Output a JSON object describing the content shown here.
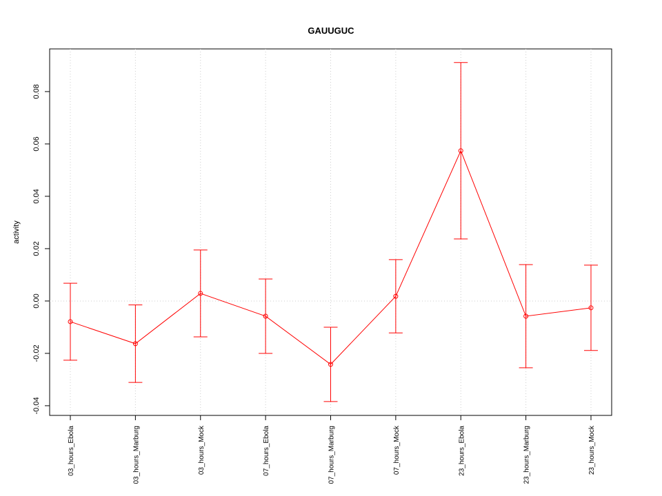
{
  "chart_data": {
    "type": "line",
    "title": "GAUUGUC",
    "y_label": "activity",
    "categories": [
      "03_hours_Ebola",
      "03_hours_Marburg",
      "03_hours_Mock",
      "07_hours_Ebola",
      "07_hours_Marburg",
      "07_hours_Mock",
      "23_hours_Ebola",
      "23_hours_Marburg",
      "23_hours_Mock"
    ],
    "values": [
      -0.0079,
      -0.0163,
      0.0029,
      -0.0058,
      -0.0242,
      0.0018,
      0.0574,
      -0.0058,
      -0.0026
    ],
    "errors": [
      0.0147,
      0.0148,
      0.0166,
      0.0142,
      0.0142,
      0.014,
      0.0337,
      0.0197,
      0.0163
    ],
    "color": "#ff0000",
    "ylim": [
      -0.0437,
      0.0963
    ],
    "yticks": [
      -0.04,
      -0.02,
      {
        "value": 0,
        "label": "0.00"
      },
      0.02,
      0.04,
      0.06,
      0.08
    ],
    "grid": true,
    "reference_line": 0
  }
}
